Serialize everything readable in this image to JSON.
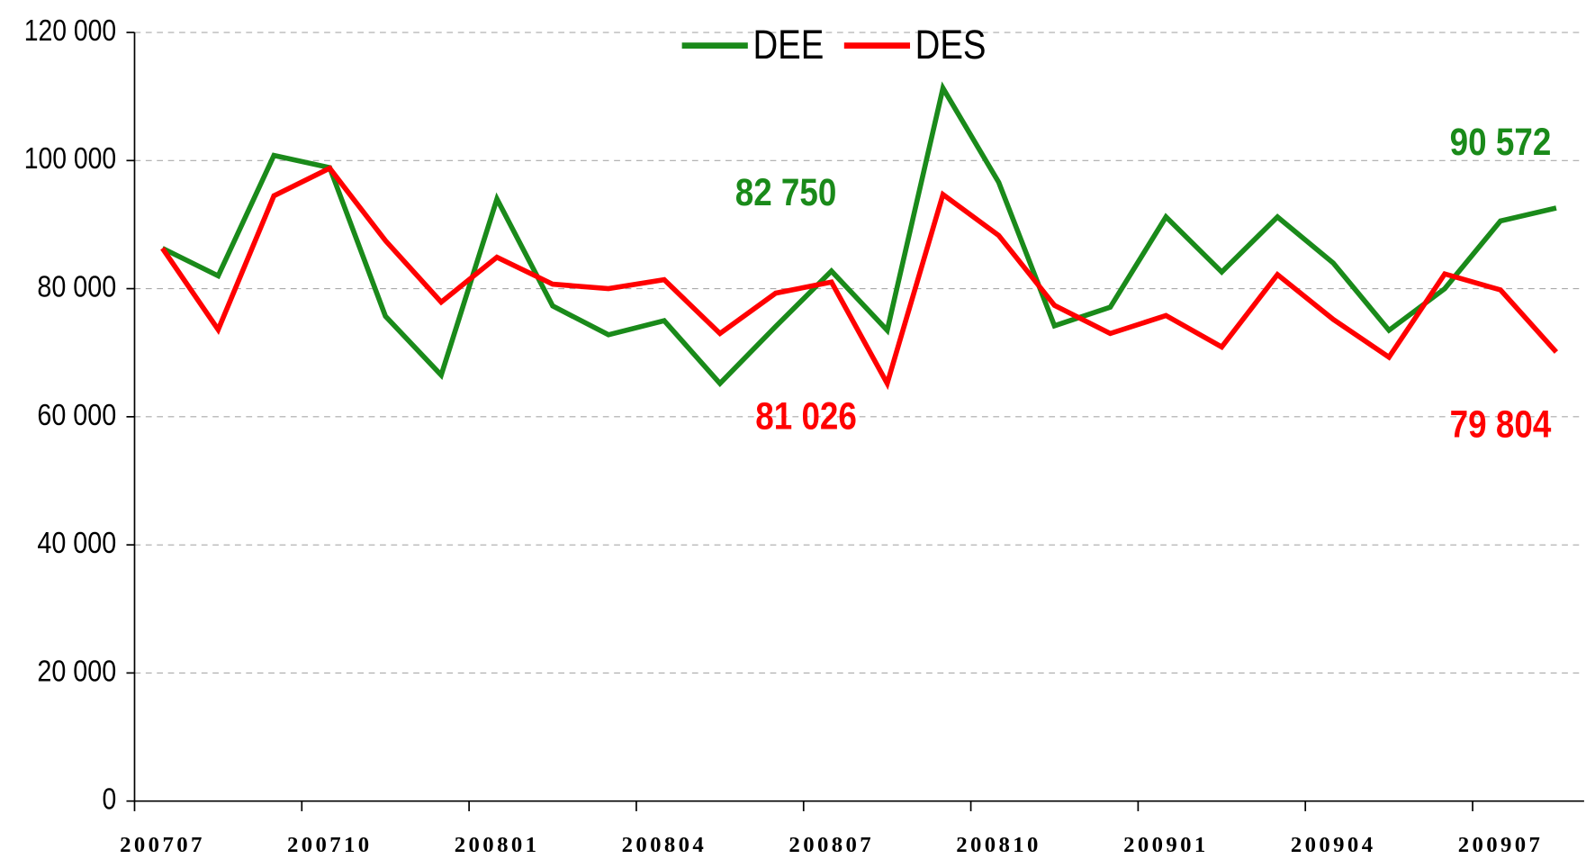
{
  "chart_data": {
    "type": "line",
    "categories": [
      "200707",
      null,
      null,
      "200710",
      null,
      null,
      "200801",
      null,
      null,
      "200804",
      null,
      null,
      "200807",
      null,
      null,
      "200810",
      null,
      null,
      "200901",
      null,
      null,
      "200904",
      null,
      null,
      "200907",
      null
    ],
    "series": [
      {
        "name": "DEE",
        "color": "#1a8a1a",
        "values": [
          86300,
          82000,
          100800,
          98900,
          75700,
          66500,
          94000,
          77300,
          72800,
          75000,
          65200,
          74100,
          82750,
          73500,
          111300,
          96600,
          74200,
          77100,
          91200,
          82600,
          91200,
          84000,
          73500,
          80000,
          90572,
          92600
        ],
        "value_labels": [
          null,
          null,
          null,
          null,
          null,
          null,
          null,
          null,
          null,
          null,
          null,
          null,
          "82 750",
          null,
          null,
          null,
          null,
          null,
          null,
          null,
          null,
          null,
          null,
          null,
          "90 572",
          null
        ]
      },
      {
        "name": "DES",
        "color": "#ff0000",
        "values": [
          86300,
          73600,
          94500,
          98800,
          87500,
          77900,
          84900,
          80700,
          80000,
          81400,
          73000,
          79300,
          81026,
          65200,
          94700,
          88300,
          77400,
          73000,
          75800,
          70900,
          82200,
          75200,
          69300,
          82300,
          79804,
          70100
        ],
        "value_labels": [
          null,
          null,
          null,
          null,
          null,
          null,
          null,
          null,
          null,
          null,
          null,
          null,
          "81 026",
          null,
          null,
          null,
          null,
          null,
          null,
          null,
          null,
          null,
          null,
          null,
          "79 804",
          null
        ]
      }
    ],
    "ylim": [
      0,
      120000
    ],
    "yticks": [
      0,
      {
        "value": 20000,
        "label": "20 000"
      },
      {
        "value": 40000,
        "label": "40 000"
      },
      {
        "value": 60000,
        "label": "60 000"
      },
      {
        "value": 80000,
        "label": "80 000"
      },
      {
        "value": 100000,
        "label": "100 000"
      },
      {
        "value": 120000,
        "label": "120 000"
      }
    ],
    "grid": true,
    "legend": "top"
  }
}
